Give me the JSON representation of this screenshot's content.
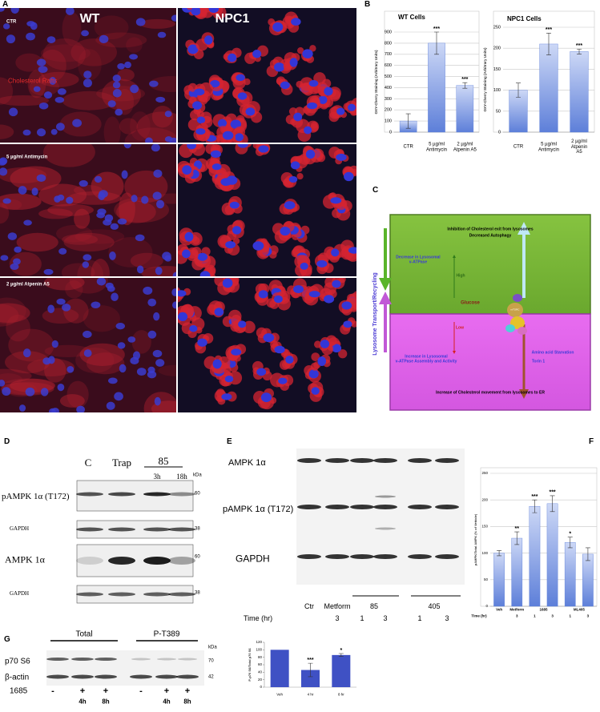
{
  "figure": {
    "panel_labels": [
      "A",
      "B",
      "C",
      "D",
      "E",
      "F",
      "G"
    ],
    "panel_a": {
      "columns": [
        "WT",
        "NPC1"
      ],
      "rows": [
        "CTR",
        "5 µg/ml Antimycin",
        "2 µg/ml Atpenin A5"
      ],
      "annotation": "Cholesterol Rafts"
    },
    "panel_c": {
      "side_label": "Lysosome Transport/Recycling",
      "top_effect": "Inhibition of Cholesterol exit from lysosomes",
      "top_effect_2": "Decreased Autophagy",
      "top_mechanism": "Decrease in Lysosomal\nv-ATPase",
      "high": "High",
      "glucose": "Glucose",
      "complex": "mTORC",
      "low": "Low",
      "bottom_mechanism": "Increase in Lysosomal\nv-ATPase Assembly and Activity",
      "starvation": "Amino acid Starvation",
      "torin": "Torin 1",
      "bottom_effect": "Increase of Cholesterol movement from lysosomes to ER"
    },
    "panel_d": {
      "lanes": [
        "C",
        "Trap",
        "85"
      ],
      "times": [
        "3h",
        "18h"
      ],
      "kda": "kDa",
      "rows": [
        "pAMPK 1α (T172)",
        "GAPDH",
        "AMPK 1α",
        "GAPDH"
      ],
      "markers": [
        60,
        38,
        60,
        38
      ]
    },
    "panel_e": {
      "rows": [
        "AMPK 1α",
        "pAMPK 1α (T172)",
        "GAPDH"
      ],
      "lanes": [
        "Ctr",
        "Metform",
        "85",
        "405"
      ],
      "time_label": "Time (hr)",
      "times": [
        "3",
        "1",
        "3",
        "1",
        "3"
      ]
    },
    "panel_g": {
      "groups": [
        "Total",
        "P-T389"
      ],
      "kda": "kDa",
      "rows": [
        "p70 S6",
        "β-actin"
      ],
      "markers": [
        70,
        42
      ],
      "treatment": "1685",
      "signs": [
        "-",
        "+",
        "+",
        "-",
        "+",
        "+"
      ],
      "times": [
        "4h",
        "8h",
        "4h",
        "8h"
      ]
    }
  },
  "chart_data": [
    {
      "type": "bar",
      "title": "WT Cells",
      "y_label": "OXY-Cherry Staining (Arbitrary Units)",
      "categories": [
        "CTR",
        "5 µg/ml\nAntimycin",
        "2 µg/ml\nAtpenin A5"
      ],
      "values": [
        100,
        800,
        420
      ],
      "errors": [
        65,
        100,
        25
      ],
      "significance": [
        null,
        "***",
        "***"
      ],
      "ylim": [
        0,
        900
      ],
      "yticks": [
        0,
        100,
        200,
        300,
        400,
        500,
        600,
        700,
        800,
        900
      ],
      "color": "#5d7fd9",
      "gradient": true,
      "grid": true
    },
    {
      "type": "bar",
      "title": "NPC1 Cells",
      "y_label": "OXY-Cherry Staining (Arbitrary Units)",
      "categories": [
        "CTR",
        "5 µg/ml\nAntimycin",
        "2 µg/ml\nAtpenin A5"
      ],
      "values": [
        100,
        210,
        192
      ],
      "errors": [
        17,
        26,
        6
      ],
      "significance": [
        null,
        "***",
        "***"
      ],
      "ylim": [
        0,
        250
      ],
      "yticks": [
        0,
        50,
        100,
        150,
        200,
        250
      ],
      "color": "#5d7fd9",
      "gradient": true,
      "grid": true
    },
    {
      "type": "bar",
      "y_label": "pAMPK/Total AMPK (% of Vehicle)",
      "categories": [
        "Veh",
        "Metform",
        "1685",
        null,
        "ML405",
        null
      ],
      "time_label": "Time (hr)",
      "times": [
        null,
        "3",
        "1",
        "3",
        "1",
        "3"
      ],
      "values": [
        100,
        128,
        188,
        193,
        120,
        98
      ],
      "errors": [
        5,
        12,
        12,
        15,
        10,
        12
      ],
      "significance": [
        null,
        "**",
        "***",
        "***",
        "*",
        null
      ],
      "ylim": [
        0,
        250
      ],
      "yticks": [
        0,
        50,
        100,
        150,
        200,
        250
      ],
      "color": "#5d7fd9",
      "gradient": true,
      "grid": true
    },
    {
      "type": "bar",
      "y_label": "P-p70 S6/Total p70 S6",
      "categories": [
        "Veh",
        "4 hr",
        "8 hr"
      ],
      "values": [
        100,
        46,
        86
      ],
      "errors": [
        null,
        18,
        4
      ],
      "significance": [
        null,
        "***",
        "*"
      ],
      "ylim": [
        0,
        120
      ],
      "yticks": [
        0,
        20,
        40,
        60,
        80,
        100,
        120
      ],
      "color": "#3f51c4",
      "gradient": false,
      "grid": false
    }
  ]
}
